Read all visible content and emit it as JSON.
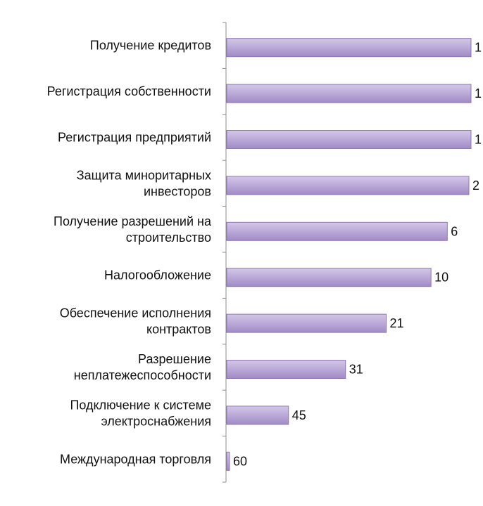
{
  "chart_data": {
    "type": "bar",
    "orientation": "horizontal",
    "categories": [
      [
        "Получение кредитов"
      ],
      [
        "Регистрация собственности"
      ],
      [
        "Регистрация предприятий"
      ],
      [
        "Защита миноритарных",
        "инвесторов"
      ],
      [
        "Получение разрешений на",
        "строительство"
      ],
      [
        "Налогообложение"
      ],
      [
        "Обеспечение исполнения",
        "контрактов"
      ],
      [
        "Разрешение",
        "неплатежеспособности"
      ],
      [
        "Подключение к системе",
        "электроснабжения"
      ],
      [
        "Международная торговля"
      ]
    ],
    "values": [
      1,
      1,
      1,
      2,
      6,
      10,
      21,
      31,
      45,
      60
    ],
    "axis": "reversed",
    "xlim": [
      0,
      60
    ],
    "grid": false,
    "legend": "none",
    "colors": {
      "bar_fill": "#b8a6d6",
      "bar_stroke": "#8f78b4",
      "axis": "#8c8c8c"
    }
  }
}
